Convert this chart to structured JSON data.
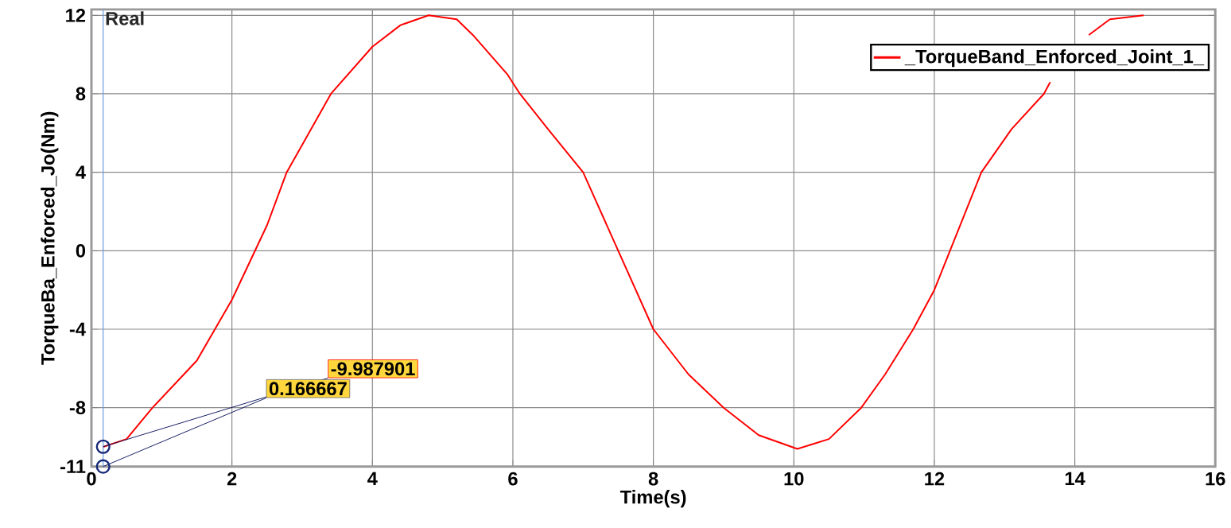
{
  "chart_data": {
    "type": "line",
    "xlabel": "Time(s)",
    "ylabel": "TorqueBa_Enforced_Jo(Nm)",
    "xlim": [
      0,
      16
    ],
    "ylim": [
      -11,
      12.3
    ],
    "xticks": [
      0,
      2,
      4,
      6,
      8,
      10,
      12,
      14,
      16
    ],
    "yticks": [
      -11,
      -8,
      -4,
      0,
      4,
      8,
      12
    ],
    "grid": true,
    "legend": "top right",
    "series": [
      {
        "name": "_TorqueBand_Enforced_Joint_1_",
        "color": "#ff0000",
        "x": [
          0.167,
          0.5,
          0.87,
          1.5,
          2,
          2.5,
          2.78,
          3.41,
          4,
          4.4,
          4.8,
          5.2,
          5.43,
          5.92,
          6.1,
          6.5,
          7,
          7.5,
          8,
          8.5,
          9,
          9.5,
          10.05,
          10.5,
          10.96,
          11.3,
          11.7,
          12,
          12.67,
          13.1,
          13.56,
          13.65,
          14,
          14.2,
          14.5,
          14.98
        ],
        "values": [
          -10,
          -9.6,
          -8,
          -5.6,
          -2.5,
          1.3,
          4,
          8,
          10.4,
          11.5,
          12,
          11.8,
          11,
          9,
          8,
          6.2,
          4,
          0,
          -4,
          -6.3,
          -8,
          -9.4,
          -10.1,
          -9.6,
          -8,
          -6.3,
          -4,
          -2,
          4,
          6.2,
          8,
          8.6,
          null,
          11,
          11.8,
          12
        ]
      }
    ],
    "ref_lines": [
      {
        "axis": "x",
        "value": 0.166667,
        "label": "Real",
        "color": "#6a9be0"
      }
    ],
    "annotations": [
      {
        "text": "-9.987901",
        "x": 0.166667,
        "y": -9.987901
      },
      {
        "text": "0.166667",
        "x": 0.166667,
        "y": -11
      }
    ]
  }
}
